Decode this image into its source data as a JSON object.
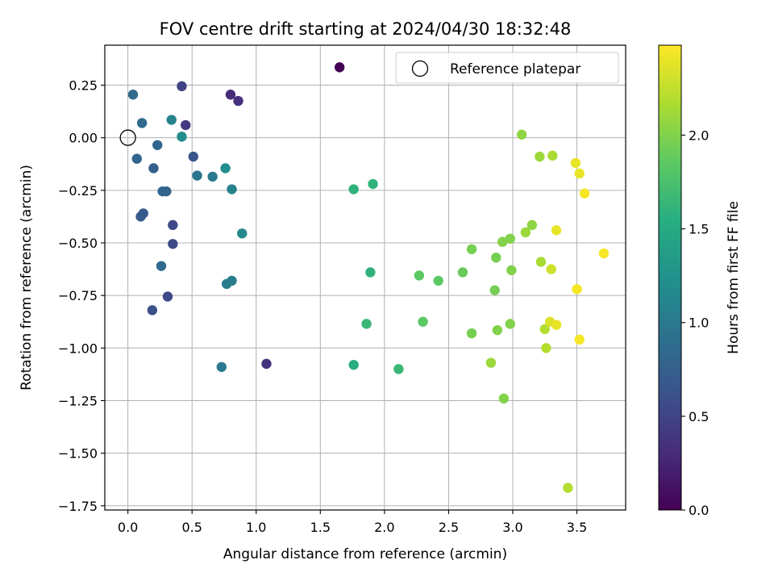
{
  "chart_data": {
    "type": "scatter",
    "title": "FOV centre drift starting at 2024/04/30 18:32:48",
    "xlabel": "Angular distance from reference (arcmin)",
    "ylabel": "Rotation from reference (arcmin)",
    "xlim": [
      -0.18,
      3.88
    ],
    "ylim": [
      -1.77,
      0.44
    ],
    "xticks": [
      0.0,
      0.5,
      1.0,
      1.5,
      2.0,
      2.5,
      3.0,
      3.5
    ],
    "xtick_labels": [
      "0.0",
      "0.5",
      "1.0",
      "1.5",
      "2.0",
      "2.5",
      "3.0",
      "3.5"
    ],
    "yticks": [
      0.25,
      0.0,
      -0.25,
      -0.5,
      -0.75,
      -1.0,
      -1.25,
      -1.5,
      -1.75
    ],
    "ytick_labels": [
      "0.25",
      "0.00",
      "−0.25",
      "−0.50",
      "−0.75",
      "−1.00",
      "−1.25",
      "−1.50",
      "−1.75"
    ],
    "grid": true,
    "legend": {
      "position": "top-right",
      "label": "Reference platepar"
    },
    "reference_point": {
      "x": 0.0,
      "y": 0.0
    },
    "colorbar": {
      "label": "Hours from first FF file",
      "colormap": "viridis",
      "range": [
        0.0,
        2.48
      ],
      "ticks": [
        0.0,
        0.5,
        1.0,
        1.5,
        2.0
      ],
      "tick_labels": [
        "0.0",
        "0.5",
        "1.0",
        "1.5",
        "2.0"
      ]
    },
    "points": [
      {
        "x": 1.65,
        "y": 0.335,
        "c": 0.0
      },
      {
        "x": 0.8,
        "y": 0.205,
        "c": 0.3
      },
      {
        "x": 0.86,
        "y": 0.175,
        "c": 0.35
      },
      {
        "x": 1.08,
        "y": -1.075,
        "c": 0.35
      },
      {
        "x": 0.45,
        "y": 0.06,
        "c": 0.4
      },
      {
        "x": 0.42,
        "y": 0.245,
        "c": 0.5
      },
      {
        "x": 0.31,
        "y": -0.755,
        "c": 0.55
      },
      {
        "x": 0.35,
        "y": -0.505,
        "c": 0.55
      },
      {
        "x": 0.35,
        "y": -0.415,
        "c": 0.55
      },
      {
        "x": 0.19,
        "y": -0.82,
        "c": 0.6
      },
      {
        "x": 0.51,
        "y": -0.09,
        "c": 0.65
      },
      {
        "x": 0.12,
        "y": -0.36,
        "c": 0.7
      },
      {
        "x": 0.1,
        "y": -0.375,
        "c": 0.7
      },
      {
        "x": 0.2,
        "y": -0.145,
        "c": 0.75
      },
      {
        "x": 0.07,
        "y": -0.1,
        "c": 0.8
      },
      {
        "x": 0.23,
        "y": -0.035,
        "c": 0.8
      },
      {
        "x": 0.27,
        "y": -0.255,
        "c": 0.8
      },
      {
        "x": 0.3,
        "y": -0.255,
        "c": 0.8
      },
      {
        "x": 0.11,
        "y": 0.07,
        "c": 0.85
      },
      {
        "x": 0.04,
        "y": 0.205,
        "c": 0.85
      },
      {
        "x": 0.26,
        "y": -0.61,
        "c": 0.85
      },
      {
        "x": 0.54,
        "y": -0.18,
        "c": 0.95
      },
      {
        "x": 0.66,
        "y": -0.185,
        "c": 1.0
      },
      {
        "x": 0.73,
        "y": -1.09,
        "c": 1.0
      },
      {
        "x": 0.77,
        "y": -0.695,
        "c": 1.05
      },
      {
        "x": 0.81,
        "y": -0.68,
        "c": 1.05
      },
      {
        "x": 0.34,
        "y": 0.085,
        "c": 1.1
      },
      {
        "x": 0.81,
        "y": -0.245,
        "c": 1.1
      },
      {
        "x": 0.89,
        "y": -0.455,
        "c": 1.15
      },
      {
        "x": 0.42,
        "y": 0.005,
        "c": 1.2
      },
      {
        "x": 0.76,
        "y": -0.145,
        "c": 1.2
      },
      {
        "x": 1.76,
        "y": -1.08,
        "c": 1.55
      },
      {
        "x": 1.76,
        "y": -0.245,
        "c": 1.6
      },
      {
        "x": 1.91,
        "y": -0.22,
        "c": 1.6
      },
      {
        "x": 1.89,
        "y": -0.64,
        "c": 1.6
      },
      {
        "x": 1.86,
        "y": -0.885,
        "c": 1.65
      },
      {
        "x": 2.11,
        "y": -1.1,
        "c": 1.65
      },
      {
        "x": 2.27,
        "y": -0.655,
        "c": 1.85
      },
      {
        "x": 2.3,
        "y": -0.875,
        "c": 1.85
      },
      {
        "x": 2.42,
        "y": -0.68,
        "c": 1.85
      },
      {
        "x": 2.61,
        "y": -0.64,
        "c": 1.9
      },
      {
        "x": 2.68,
        "y": -0.53,
        "c": 1.95
      },
      {
        "x": 2.68,
        "y": -0.93,
        "c": 1.95
      },
      {
        "x": 2.86,
        "y": -0.725,
        "c": 1.95
      },
      {
        "x": 2.87,
        "y": -0.57,
        "c": 1.95
      },
      {
        "x": 2.88,
        "y": -0.915,
        "c": 2.0
      },
      {
        "x": 2.92,
        "y": -0.495,
        "c": 2.0
      },
      {
        "x": 2.98,
        "y": -0.48,
        "c": 2.0
      },
      {
        "x": 2.98,
        "y": -0.885,
        "c": 2.0
      },
      {
        "x": 2.99,
        "y": -0.63,
        "c": 2.0
      },
      {
        "x": 2.93,
        "y": -1.24,
        "c": 2.0
      },
      {
        "x": 3.07,
        "y": 0.015,
        "c": 2.05
      },
      {
        "x": 3.15,
        "y": -0.415,
        "c": 2.05
      },
      {
        "x": 3.1,
        "y": -0.45,
        "c": 2.1
      },
      {
        "x": 2.83,
        "y": -1.07,
        "c": 2.1
      },
      {
        "x": 3.21,
        "y": -0.09,
        "c": 2.1
      },
      {
        "x": 3.31,
        "y": -0.085,
        "c": 2.15
      },
      {
        "x": 3.22,
        "y": -0.59,
        "c": 2.15
      },
      {
        "x": 3.25,
        "y": -0.91,
        "c": 2.2
      },
      {
        "x": 3.26,
        "y": -1.0,
        "c": 2.2
      },
      {
        "x": 3.43,
        "y": -1.665,
        "c": 2.2
      },
      {
        "x": 3.3,
        "y": -0.625,
        "c": 2.3
      },
      {
        "x": 3.29,
        "y": -0.875,
        "c": 2.35
      },
      {
        "x": 3.34,
        "y": -0.89,
        "c": 2.4
      },
      {
        "x": 3.34,
        "y": -0.44,
        "c": 2.4
      },
      {
        "x": 3.49,
        "y": -0.12,
        "c": 2.4
      },
      {
        "x": 3.52,
        "y": -0.17,
        "c": 2.4
      },
      {
        "x": 3.56,
        "y": -0.265,
        "c": 2.45
      },
      {
        "x": 3.5,
        "y": -0.72,
        "c": 2.45
      },
      {
        "x": 3.52,
        "y": -0.96,
        "c": 2.45
      },
      {
        "x": 3.71,
        "y": -0.55,
        "c": 2.45
      }
    ]
  }
}
